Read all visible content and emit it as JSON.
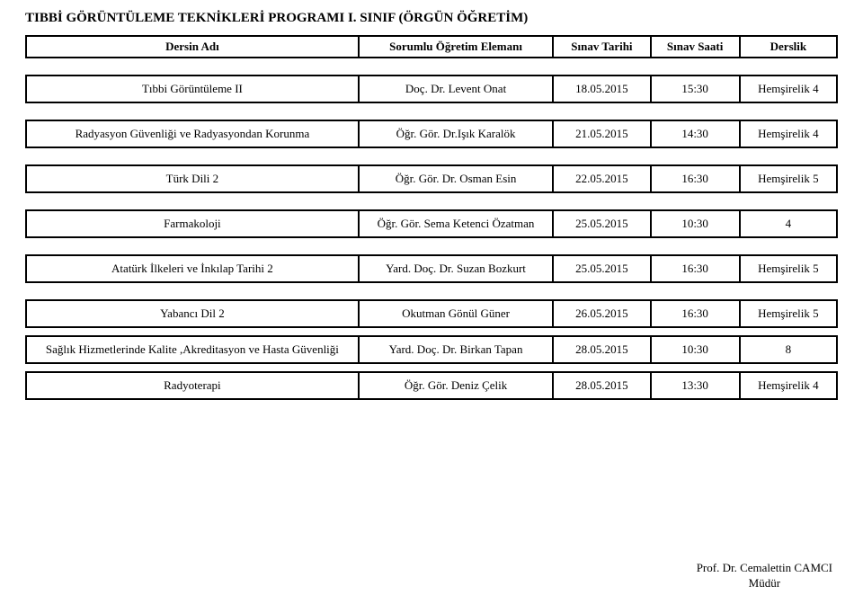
{
  "title": "TIBBİ GÖRÜNTÜLEME TEKNİKLERİ PROGRAMI I. SINIF (ÖRGÜN ÖĞRETİM)",
  "colwidths": {
    "c1": "41%",
    "c2": "24%",
    "c3": "12%",
    "c4": "11%",
    "c5": "12%"
  },
  "header": {
    "c1": "Dersin Adı",
    "c2": "Sorumlu Öğretim Elemanı",
    "c3": "Sınav Tarihi",
    "c4": "Sınav Saati",
    "c5": "Derslik"
  },
  "rows": [
    {
      "c1": "Tıbbi Görüntüleme II",
      "c2": "Doç. Dr. Levent Onat",
      "c3": "18.05.2015",
      "c4": "15:30",
      "c5": "Hemşirelik 4"
    },
    {
      "c1": "Radyasyon Güvenliği ve Radyasyondan Korunma",
      "c2": "Öğr. Gör. Dr.Işık Karalök",
      "c3": "21.05.2015",
      "c4": "14:30",
      "c5": "Hemşirelik 4"
    },
    {
      "c1": "Türk Dili 2",
      "c2": "Öğr. Gör. Dr. Osman Esin",
      "c3": "22.05.2015",
      "c4": "16:30",
      "c5": "Hemşirelik 5"
    },
    {
      "c1": "Farmakoloji",
      "c2": "Öğr. Gör. Sema Ketenci Özatman",
      "c3": "25.05.2015",
      "c4": "10:30",
      "c5": "4"
    },
    {
      "c1": "Atatürk İlkeleri ve İnkılap Tarihi 2",
      "c2": "Yard. Doç. Dr. Suzan Bozkurt",
      "c3": "25.05.2015",
      "c4": "16:30",
      "c5": "Hemşirelik 5"
    },
    {
      "c1": "Yabancı Dil 2",
      "c2": "Okutman Gönül Güner",
      "c3": "26.05.2015",
      "c4": "16:30",
      "c5": "Hemşirelik 5"
    },
    {
      "c1": "Sağlık Hizmetlerinde Kalite ,Akreditasyon ve Hasta Güvenliği",
      "c2": "Yard. Doç. Dr. Birkan Tapan",
      "c3": "28.05.2015",
      "c4": "10:30",
      "c5": "8"
    },
    {
      "c1": "Radyoterapi",
      "c2": "Öğr. Gör. Deniz Çelik",
      "c3": "28.05.2015",
      "c4": "13:30",
      "c5": "Hemşirelik 4"
    }
  ],
  "footer": {
    "line1": "Prof. Dr. Cemalettin CAMCI",
    "line2": "Müdür"
  }
}
